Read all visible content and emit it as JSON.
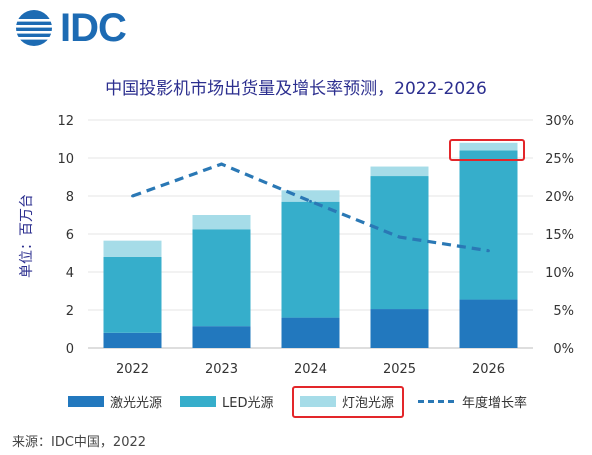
{
  "logo": {
    "text": "IDC"
  },
  "footer": {
    "source": "来源：IDC中国，2022"
  },
  "colors": {
    "laser": "#2278be",
    "led": "#36aecb",
    "lamp": "#a6dce8",
    "growth": "#2a78b5",
    "title": "#2c2f8f",
    "highlight": "#e3262a"
  },
  "chart_data": {
    "type": "bar",
    "stacked": true,
    "title": "中国投影机市场出货量及增长率预测，2022-2026",
    "ylabel": "单位：百万台",
    "categories": [
      "2022",
      "2023",
      "2024",
      "2025",
      "2026"
    ],
    "ylim": [
      0,
      12
    ],
    "yticks": [
      "0",
      "2",
      "4",
      "6",
      "8",
      "10",
      "12"
    ],
    "y2lim": [
      0,
      30
    ],
    "y2ticks": [
      "0%",
      "5%",
      "10%",
      "15%",
      "20%",
      "25%",
      "30%"
    ],
    "series": [
      {
        "name": "激光光源",
        "values": [
          0.8,
          1.15,
          1.6,
          2.05,
          2.55
        ]
      },
      {
        "name": "LED光源",
        "values": [
          4.0,
          5.1,
          6.1,
          7.0,
          7.85
        ]
      },
      {
        "name": "灯泡光源",
        "values": [
          0.85,
          0.75,
          0.6,
          0.5,
          0.4
        ]
      }
    ],
    "line_series": {
      "name": "年度增长率",
      "axis": "right",
      "style": "dashed",
      "values": [
        20.0,
        24.2,
        19.3,
        14.6,
        12.8
      ]
    },
    "grid": true,
    "legend_position": "bottom",
    "highlighted": [
      "2026 灯泡光源",
      "灯泡光源 legend"
    ]
  }
}
